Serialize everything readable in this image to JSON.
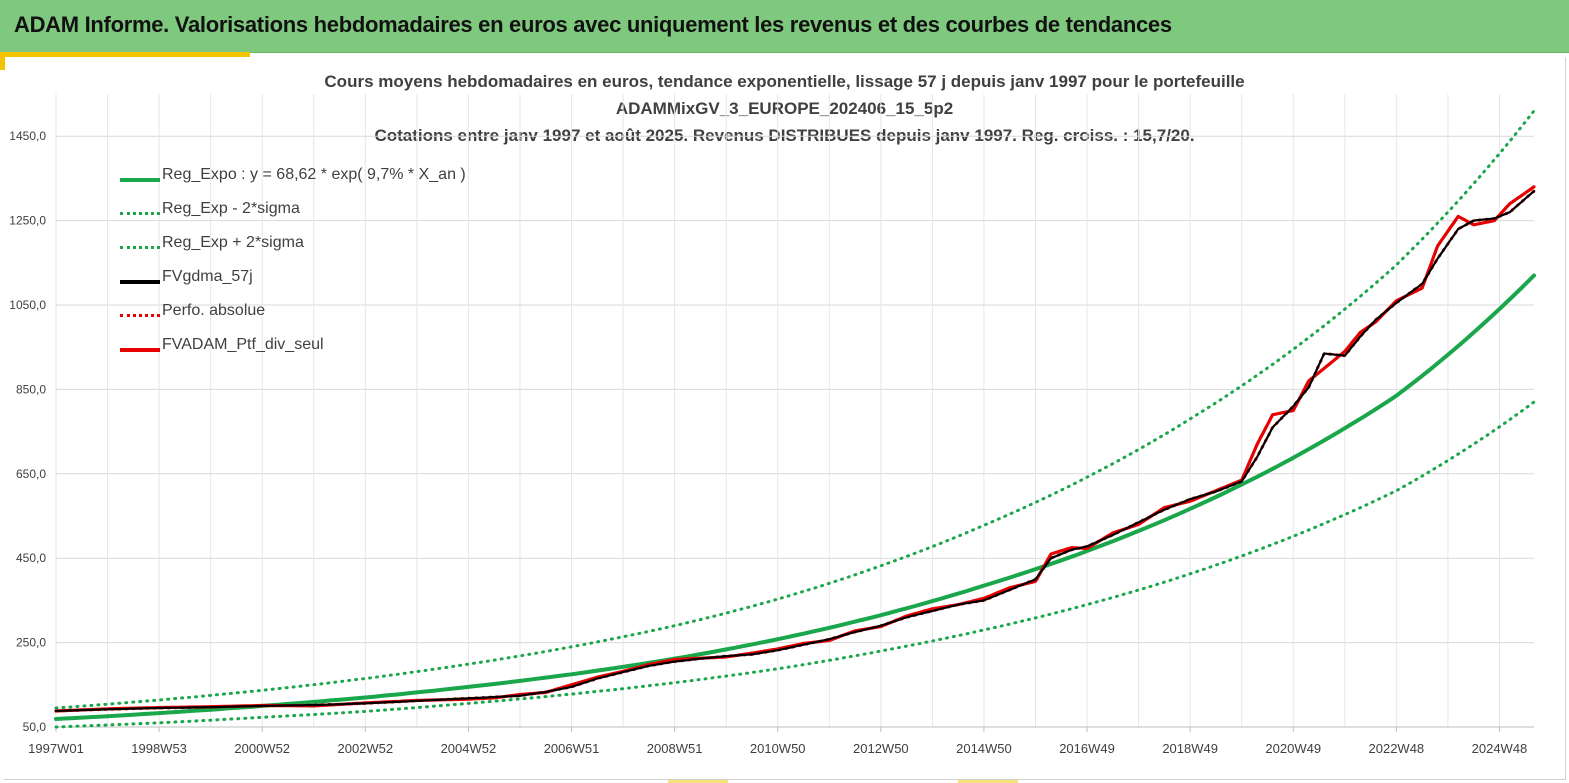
{
  "banner": {
    "title": "ADAM Informe. Valorisations hebdomadaires en euros avec uniquement les revenus et des courbes de tendances"
  },
  "chart_data": {
    "type": "line",
    "title_lines": [
      "Cours moyens hebdomadaires  en euros, tendance exponentielle, lissage 57 j depuis janv 1997 pour le portefeuille",
      "ADAMMixGV_3_EUROPE_202406_15_5p2",
      "Cotations entre janv 1997 et août 2025. Revenus DISTRIBUES depuis janv 1997. Reg. croiss. : 15,7/20."
    ],
    "ylim": [
      50,
      1550
    ],
    "y_ticks": [
      "50,0",
      "250,0",
      "450,0",
      "650,0",
      "850,0",
      "1050,0",
      "1250,0",
      "1450,0"
    ],
    "y_tick_values": [
      50,
      250,
      450,
      650,
      850,
      1050,
      1250,
      1450
    ],
    "x_range_years": [
      1997.0,
      2025.67
    ],
    "x_ticks": [
      "1997W01",
      "1998W53",
      "2000W52",
      "2002W52",
      "2004W52",
      "2006W51",
      "2008W51",
      "2010W50",
      "2012W50",
      "2014W50",
      "2016W49",
      "2018W49",
      "2020W49",
      "2022W48",
      "2024W48"
    ],
    "x_tick_years": [
      1997.0,
      1999.0,
      2001.0,
      2003.0,
      2005.0,
      2007.0,
      2009.0,
      2011.0,
      2013.0,
      2015.0,
      2017.0,
      2019.0,
      2021.0,
      2023.0,
      2025.0
    ],
    "grid": true,
    "legend_position": "top-left",
    "colors": {
      "trend": "#1aa64a",
      "trend_band": "#1aa64a",
      "smoothed": "#000000",
      "portfolio": "#e60000"
    },
    "series": [
      {
        "name": "Reg_Expo : y = 68,62 * exp( 9,7% *  X_an )",
        "style": "solid",
        "color": "#1aa64a",
        "x": [
          1997,
          1999,
          2001,
          2003,
          2005,
          2007,
          2009,
          2011,
          2013,
          2015,
          2017,
          2019,
          2021,
          2023,
          2025.67
        ],
        "values": [
          69,
          83,
          100,
          120,
          145,
          175,
          212,
          258,
          315,
          385,
          467,
          567,
          688,
          835,
          1120
        ]
      },
      {
        "name": "Reg_Exp - 2*sigma",
        "style": "dotted",
        "color": "#1aa64a",
        "x": [
          1997,
          1999,
          2001,
          2003,
          2005,
          2007,
          2009,
          2011,
          2013,
          2015,
          2017,
          2019,
          2021,
          2023,
          2025.67
        ],
        "values": [
          50,
          60,
          73,
          87,
          106,
          128,
          155,
          188,
          230,
          280,
          340,
          413,
          502,
          610,
          820
        ]
      },
      {
        "name": "Reg_Exp + 2*sigma",
        "style": "dotted",
        "color": "#1aa64a",
        "x": [
          1997,
          1999,
          2001,
          2003,
          2005,
          2007,
          2009,
          2011,
          2013,
          2015,
          2017,
          2019,
          2021,
          2023,
          2025.67
        ],
        "values": [
          95,
          114,
          137,
          165,
          199,
          240,
          290,
          353,
          432,
          528,
          642,
          780,
          945,
          1145,
          1510
        ]
      },
      {
        "name": "FVgdma_57j",
        "style": "solid",
        "color": "#000000",
        "x": [
          1997,
          1998,
          1999,
          2000,
          2001,
          2002,
          2003,
          2004,
          2005,
          2005.5,
          2006,
          2006.5,
          2007,
          2007.5,
          2008,
          2008.5,
          2009,
          2009.5,
          2010,
          2010.5,
          2011,
          2011.5,
          2012,
          2012.5,
          2013,
          2013.5,
          2014,
          2014.5,
          2015,
          2015.5,
          2016,
          2016.3,
          2016.7,
          2017,
          2017.5,
          2018,
          2018.5,
          2019,
          2019.5,
          2020,
          2020.3,
          2020.6,
          2021,
          2021.3,
          2021.6,
          2022,
          2022.3,
          2022.6,
          2023,
          2023.5,
          2023.8,
          2024.2,
          2024.5,
          2024.9,
          2025.2,
          2025.67
        ],
        "values": [
          88,
          92,
          95,
          97,
          100,
          102,
          106,
          112,
          118,
          121,
          124,
          133,
          145,
          165,
          180,
          195,
          205,
          212,
          218,
          222,
          232,
          245,
          258,
          275,
          290,
          310,
          325,
          340,
          350,
          375,
          400,
          450,
          470,
          478,
          505,
          535,
          565,
          590,
          608,
          632,
          690,
          760,
          810,
          855,
          935,
          930,
          975,
          1015,
          1055,
          1100,
          1160,
          1230,
          1250,
          1255,
          1270,
          1320
        ]
      },
      {
        "name": "Perfo. absolue",
        "style": "dotted",
        "color": "#e60000",
        "x": [
          1997,
          1998,
          1999,
          2000,
          2001,
          2002,
          2003,
          2004,
          2005,
          2005.5,
          2006,
          2006.5,
          2007,
          2007.5,
          2008,
          2008.5,
          2009,
          2009.5,
          2010,
          2010.5,
          2011,
          2011.5,
          2012,
          2012.5,
          2013,
          2013.5,
          2014,
          2014.5,
          2015,
          2015.5,
          2016,
          2016.3,
          2016.7,
          2017,
          2017.5,
          2018,
          2018.5,
          2019,
          2019.5,
          2020,
          2020.3,
          2020.6,
          2021,
          2021.3,
          2021.6,
          2022,
          2022.3,
          2022.6,
          2023,
          2023.5,
          2023.8,
          2024.2,
          2024.5,
          2024.9,
          2025.2,
          2025.67
        ],
        "values": [
          88,
          92,
          95,
          97,
          100,
          102,
          106,
          112,
          118,
          121,
          124,
          133,
          145,
          165,
          180,
          195,
          205,
          212,
          218,
          222,
          232,
          245,
          258,
          275,
          290,
          310,
          325,
          340,
          350,
          375,
          400,
          450,
          470,
          478,
          505,
          535,
          565,
          590,
          608,
          632,
          690,
          760,
          810,
          855,
          935,
          930,
          975,
          1015,
          1055,
          1100,
          1160,
          1230,
          1250,
          1255,
          1270,
          1320
        ]
      },
      {
        "name": "FVADAM_Ptf_div_seul",
        "style": "solid",
        "color": "#e60000",
        "x": [
          1997,
          1998,
          1999,
          2000,
          2001,
          2002,
          2003,
          2004,
          2005,
          2005.5,
          2006,
          2006.5,
          2007,
          2007.5,
          2008,
          2008.5,
          2009,
          2009.5,
          2010,
          2010.5,
          2011,
          2011.5,
          2012,
          2012.5,
          2013,
          2013.5,
          2014,
          2014.5,
          2015,
          2015.5,
          2016,
          2016.3,
          2016.7,
          2017,
          2017.5,
          2018,
          2018.5,
          2019,
          2019.5,
          2020,
          2020.3,
          2020.6,
          2021,
          2021.3,
          2021.6,
          2022,
          2022.3,
          2022.6,
          2023,
          2023.5,
          2023.8,
          2024.2,
          2024.5,
          2024.9,
          2025.2,
          2025.67
        ],
        "values": [
          88,
          93,
          96,
          98,
          101,
          100,
          107,
          113,
          116,
          119,
          127,
          132,
          150,
          168,
          182,
          198,
          210,
          213,
          216,
          225,
          235,
          248,
          255,
          278,
          288,
          313,
          330,
          340,
          355,
          380,
          395,
          460,
          475,
          473,
          510,
          530,
          570,
          585,
          610,
          635,
          720,
          790,
          800,
          870,
          900,
          940,
          985,
          1010,
          1060,
          1090,
          1190,
          1260,
          1240,
          1250,
          1290,
          1330
        ]
      }
    ]
  }
}
